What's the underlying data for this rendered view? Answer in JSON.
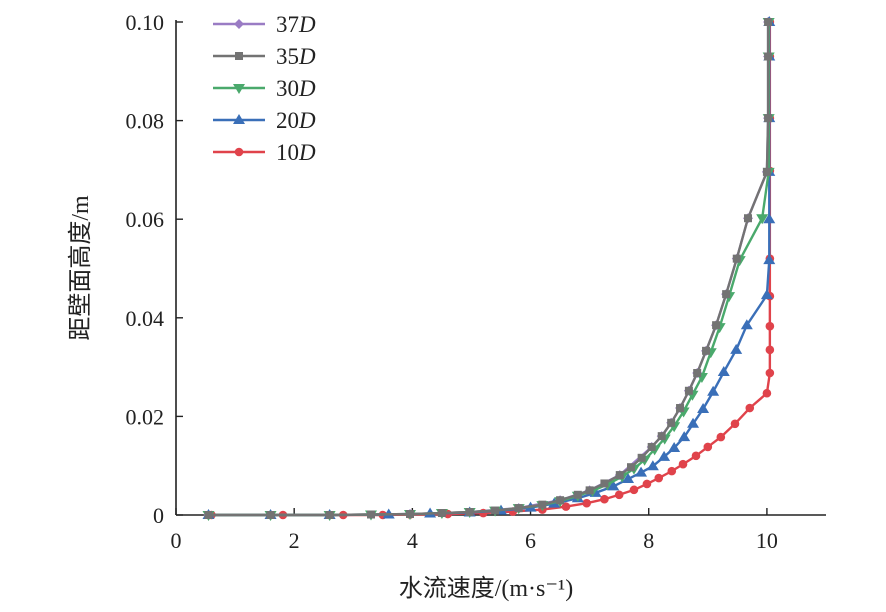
{
  "chart_data": {
    "type": "line",
    "title": "",
    "xlabel": "水流速度/(m·s⁻¹)",
    "ylabel": "距壁面高度/m",
    "xlim": [
      0,
      11
    ],
    "ylim": [
      0,
      0.1
    ],
    "xticks": [
      "0",
      "2",
      "4",
      "6",
      "8",
      "10"
    ],
    "xtick_values": [
      0,
      2,
      4,
      6,
      8,
      10
    ],
    "yticks": [
      "0",
      "0.02",
      "0.04",
      "0.06",
      "0.08",
      "0.10"
    ],
    "ytick_values": [
      0,
      0.02,
      0.04,
      0.06,
      0.08,
      0.1
    ],
    "grid": false,
    "legend_position": "top-left",
    "series": [
      {
        "name": "37D",
        "label_num": "37",
        "label_it": "D",
        "color": "#9a7cc4",
        "marker": "diamond",
        "points": [
          [
            0.55,
            0
          ],
          [
            1.6,
            0
          ],
          [
            2.6,
            0
          ],
          [
            3.96,
            0.0002
          ],
          [
            4.97,
            0.0006
          ],
          [
            5.8,
            0.0014
          ],
          [
            6.5,
            0.003
          ],
          [
            7.0,
            0.005
          ],
          [
            7.51,
            0.0081
          ],
          [
            8.05,
            0.0138
          ],
          [
            8.22,
            0.016
          ],
          [
            8.38,
            0.0187
          ],
          [
            8.53,
            0.0217
          ],
          [
            8.68,
            0.0252
          ],
          [
            8.82,
            0.0288
          ],
          [
            8.97,
            0.0333
          ],
          [
            9.14,
            0.0385
          ],
          [
            9.31,
            0.0448
          ],
          [
            9.49,
            0.052
          ],
          [
            9.68,
            0.0602
          ],
          [
            10.0,
            0.0696
          ],
          [
            10.02,
            0.0805
          ],
          [
            10.02,
            0.093
          ],
          [
            10.02,
            0.1
          ]
        ]
      },
      {
        "name": "35D",
        "label_num": "35",
        "label_it": "D",
        "color": "#737373",
        "marker": "square",
        "points": [
          [
            0.55,
            0
          ],
          [
            1.6,
            0
          ],
          [
            2.6,
            0
          ],
          [
            3.3,
            0.0001
          ],
          [
            3.96,
            0.0002
          ],
          [
            4.5,
            0.0004
          ],
          [
            4.97,
            0.0006
          ],
          [
            5.4,
            0.0009
          ],
          [
            5.8,
            0.0014
          ],
          [
            6.2,
            0.0021
          ],
          [
            6.5,
            0.003
          ],
          [
            6.8,
            0.0041
          ],
          [
            7.0,
            0.005
          ],
          [
            7.25,
            0.0064
          ],
          [
            7.51,
            0.0081
          ],
          [
            7.7,
            0.0097
          ],
          [
            7.88,
            0.0116
          ],
          [
            8.05,
            0.0138
          ],
          [
            8.22,
            0.016
          ],
          [
            8.38,
            0.0187
          ],
          [
            8.53,
            0.0217
          ],
          [
            8.68,
            0.0252
          ],
          [
            8.82,
            0.0288
          ],
          [
            8.97,
            0.0333
          ],
          [
            9.14,
            0.0385
          ],
          [
            9.31,
            0.0448
          ],
          [
            9.49,
            0.052
          ],
          [
            9.68,
            0.0602
          ],
          [
            10.0,
            0.0696
          ],
          [
            10.02,
            0.0805
          ],
          [
            10.02,
            0.093
          ],
          [
            10.02,
            0.1
          ]
        ]
      },
      {
        "name": "30D",
        "label_num": "30",
        "label_it": "D",
        "color": "#4aa96c",
        "marker": "triangle-down",
        "points": [
          [
            0.55,
            0
          ],
          [
            1.6,
            0
          ],
          [
            2.6,
            0
          ],
          [
            3.3,
            0.0001
          ],
          [
            3.96,
            0.0002
          ],
          [
            4.5,
            0.0004
          ],
          [
            4.97,
            0.0006
          ],
          [
            5.4,
            0.0009
          ],
          [
            5.8,
            0.0014
          ],
          [
            6.2,
            0.002
          ],
          [
            6.5,
            0.0028
          ],
          [
            6.8,
            0.0039
          ],
          [
            7.05,
            0.0049
          ],
          [
            7.3,
            0.0062
          ],
          [
            7.55,
            0.0078
          ],
          [
            7.75,
            0.0094
          ],
          [
            7.93,
            0.0112
          ],
          [
            8.1,
            0.0133
          ],
          [
            8.27,
            0.0155
          ],
          [
            8.43,
            0.018
          ],
          [
            8.59,
            0.021
          ],
          [
            8.74,
            0.0244
          ],
          [
            8.9,
            0.028
          ],
          [
            9.05,
            0.033
          ],
          [
            9.2,
            0.0381
          ],
          [
            9.36,
            0.0444
          ],
          [
            9.54,
            0.0517
          ],
          [
            9.92,
            0.0602
          ],
          [
            10.03,
            0.0696
          ],
          [
            10.03,
            0.0805
          ],
          [
            10.03,
            0.093
          ],
          [
            10.03,
            0.1
          ]
        ]
      },
      {
        "name": "20D",
        "label_num": "20",
        "label_it": "D",
        "color": "#3a6fb8",
        "marker": "triangle-up",
        "points": [
          [
            0.55,
            0
          ],
          [
            1.6,
            0
          ],
          [
            2.6,
            0
          ],
          [
            3.6,
            0.0001
          ],
          [
            4.3,
            0.0003
          ],
          [
            4.97,
            0.0005
          ],
          [
            5.5,
            0.0009
          ],
          [
            6.0,
            0.0015
          ],
          [
            6.4,
            0.0023
          ],
          [
            6.8,
            0.0034
          ],
          [
            7.1,
            0.0045
          ],
          [
            7.4,
            0.0058
          ],
          [
            7.65,
            0.0073
          ],
          [
            7.87,
            0.0086
          ],
          [
            8.07,
            0.0099
          ],
          [
            8.26,
            0.0118
          ],
          [
            8.43,
            0.0136
          ],
          [
            8.6,
            0.0158
          ],
          [
            8.75,
            0.0185
          ],
          [
            8.92,
            0.0215
          ],
          [
            9.09,
            0.025
          ],
          [
            9.27,
            0.029
          ],
          [
            9.48,
            0.0335
          ],
          [
            9.66,
            0.0385
          ],
          [
            10.0,
            0.0446
          ],
          [
            10.04,
            0.0517
          ],
          [
            10.04,
            0.06
          ],
          [
            10.04,
            0.0696
          ],
          [
            10.04,
            0.0805
          ],
          [
            10.04,
            0.093
          ],
          [
            10.04,
            0.1
          ]
        ]
      },
      {
        "name": "10D",
        "label_num": "10",
        "label_it": "D",
        "color": "#e0434b",
        "marker": "circle",
        "points": [
          [
            0.6,
            0
          ],
          [
            1.81,
            0
          ],
          [
            2.83,
            0
          ],
          [
            3.5,
            0
          ],
          [
            3.96,
            0.0001
          ],
          [
            4.6,
            0.0002
          ],
          [
            5.2,
            0.0004
          ],
          [
            5.7,
            0.0007
          ],
          [
            6.2,
            0.0011
          ],
          [
            6.6,
            0.0017
          ],
          [
            6.95,
            0.0024
          ],
          [
            7.25,
            0.0032
          ],
          [
            7.5,
            0.0041
          ],
          [
            7.75,
            0.0051
          ],
          [
            7.97,
            0.0063
          ],
          [
            8.17,
            0.0075
          ],
          [
            8.39,
            0.0089
          ],
          [
            8.58,
            0.0103
          ],
          [
            8.8,
            0.012
          ],
          [
            9.0,
            0.0138
          ],
          [
            9.22,
            0.0158
          ],
          [
            9.46,
            0.0185
          ],
          [
            9.71,
            0.0217
          ],
          [
            10.0,
            0.0247
          ],
          [
            10.05,
            0.0288
          ],
          [
            10.05,
            0.0335
          ],
          [
            10.05,
            0.0383
          ],
          [
            10.05,
            0.0444
          ],
          [
            10.05,
            0.052
          ],
          [
            10.05,
            0.0698
          ],
          [
            10.05,
            0.0805
          ],
          [
            10.05,
            0.093
          ],
          [
            10.05,
            0.1
          ]
        ]
      }
    ]
  }
}
